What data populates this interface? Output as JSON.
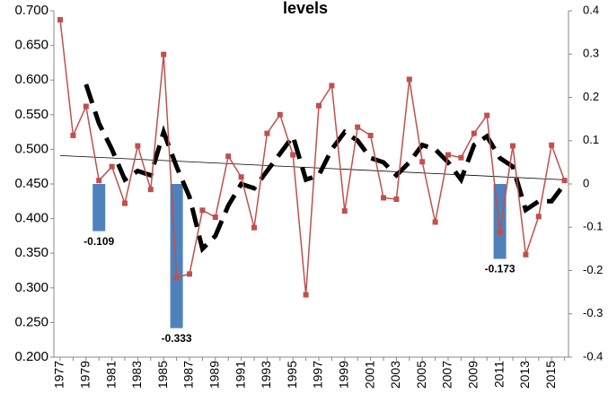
{
  "chart_data": {
    "type": "combo",
    "title": "levels",
    "categories": [
      "1977",
      null,
      "1979",
      null,
      "1981",
      null,
      "1983",
      null,
      "1985",
      null,
      "1987",
      null,
      "1989",
      null,
      "1991",
      null,
      "1993",
      null,
      "1995",
      null,
      "1997",
      null,
      "1999",
      null,
      "2001",
      null,
      "2003",
      null,
      "2005",
      null,
      "2007",
      null,
      "2009",
      null,
      "2011",
      null,
      "2013",
      null,
      "2015",
      null
    ],
    "series": [
      {
        "type": "line",
        "color": "#c0504d",
        "marker": "square",
        "values": [
          0.687,
          0.52,
          0.562,
          0.455,
          0.475,
          0.422,
          0.505,
          0.442,
          0.637,
          0.315,
          0.32,
          0.412,
          0.402,
          0.49,
          0.46,
          0.387,
          0.523,
          0.55,
          0.492,
          0.29,
          0.563,
          0.592,
          0.411,
          0.532,
          0.52,
          0.43,
          0.428,
          0.601,
          0.482,
          0.395,
          0.492,
          0.488,
          0.523,
          0.549,
          0.38,
          0.505,
          0.348,
          0.403,
          0.506,
          0.455
        ]
      },
      {
        "type": "dashed-line",
        "axis": "y2",
        "color": "#000000",
        "values": [
          null,
          null,
          0.23,
          0.14,
          0.08,
          0.01,
          0.03,
          0.02,
          0.12,
          0.04,
          -0.03,
          -0.15,
          -0.12,
          -0.05,
          0.0,
          -0.01,
          0.03,
          0.07,
          0.11,
          0.01,
          0.02,
          0.08,
          0.12,
          0.1,
          0.06,
          0.05,
          0.02,
          0.05,
          0.09,
          0.08,
          0.05,
          0.01,
          0.09,
          0.11,
          0.06,
          0.04,
          -0.06,
          -0.04,
          -0.04,
          0.0
        ]
      },
      {
        "type": "bar",
        "axis": "y2",
        "color": "#4f81bd",
        "show_values": true,
        "values": [
          null,
          null,
          null,
          -0.109,
          null,
          null,
          null,
          null,
          null,
          -0.333,
          null,
          null,
          null,
          null,
          null,
          null,
          null,
          null,
          null,
          null,
          null,
          null,
          null,
          null,
          null,
          null,
          null,
          null,
          null,
          null,
          null,
          null,
          null,
          null,
          -0.173,
          null,
          null,
          null,
          null,
          null
        ]
      }
    ],
    "trend": {
      "color": "#000000",
      "values": [
        0.491,
        0.456
      ]
    },
    "ylim": [
      0.2,
      0.7
    ],
    "yticks": [
      {
        "value": 0.2,
        "label": "0.200"
      },
      {
        "value": 0.25,
        "label": "0.250"
      },
      {
        "value": 0.3,
        "label": "0.300"
      },
      {
        "value": 0.35,
        "label": "0.350"
      },
      {
        "value": 0.4,
        "label": "0.400"
      },
      {
        "value": 0.45,
        "label": "0.450"
      },
      {
        "value": 0.5,
        "label": "0.500"
      },
      {
        "value": 0.55,
        "label": "0.550"
      },
      {
        "value": 0.6,
        "label": "0.600"
      },
      {
        "value": 0.65,
        "label": "0.650"
      },
      {
        "value": 0.7,
        "label": "0.700"
      }
    ],
    "y2lim": [
      -0.4,
      0.4
    ],
    "y2ticks": [
      -0.4,
      -0.3,
      -0.2,
      -0.1,
      0,
      0.1,
      0.2,
      0.3,
      0.4
    ],
    "grid": false
  }
}
